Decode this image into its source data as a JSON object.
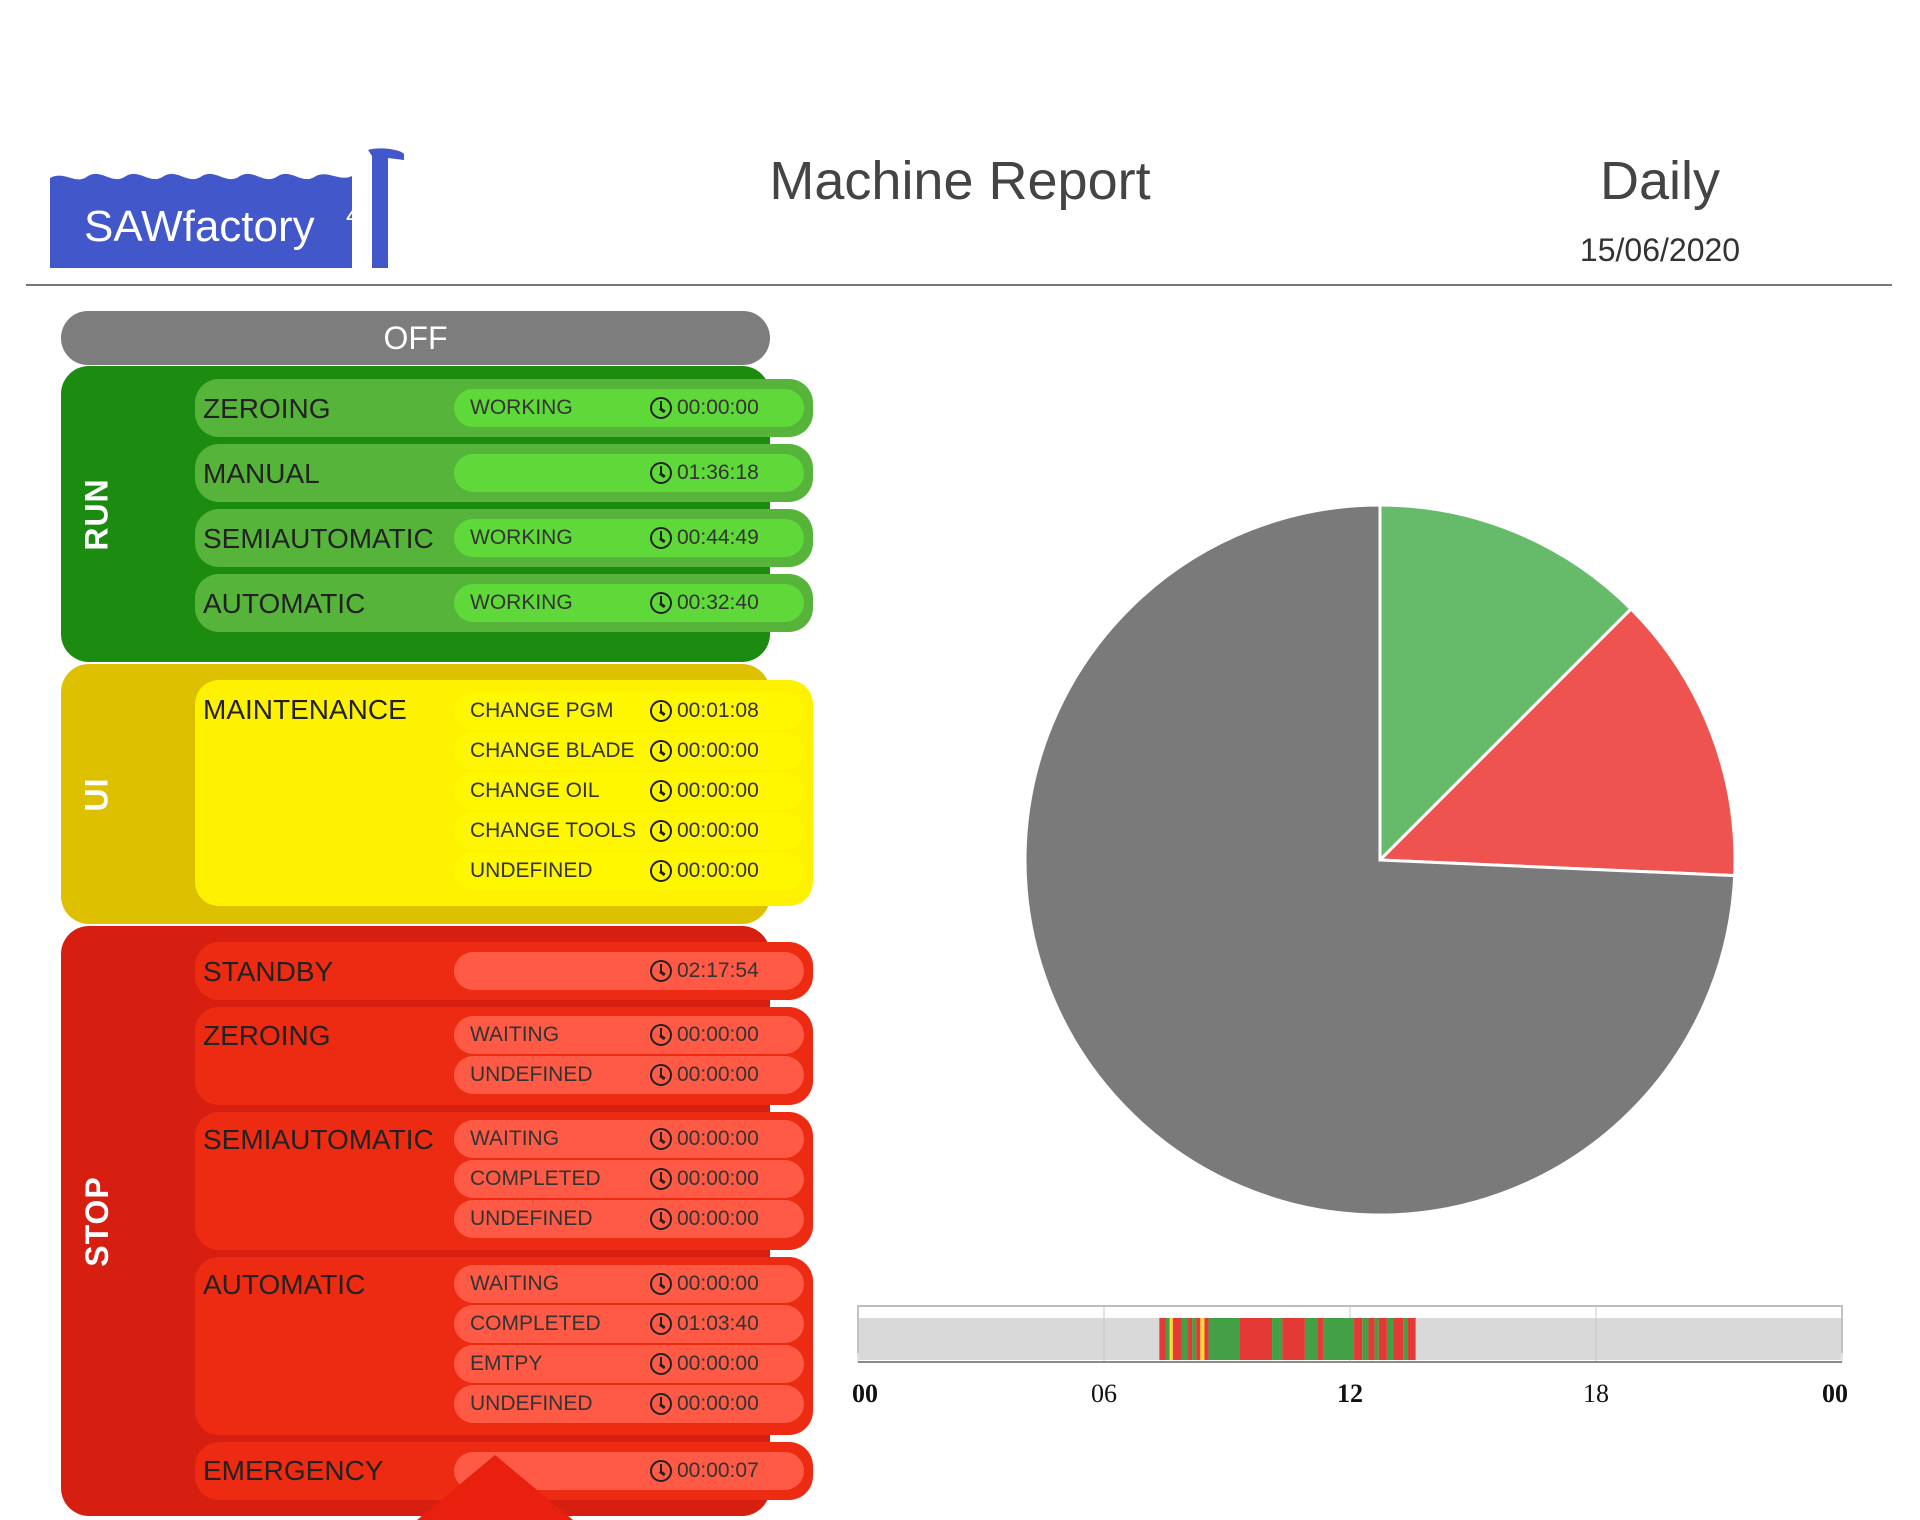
{
  "header": {
    "logo_text": "SAWfactory",
    "logo_superscript": "4",
    "title": "Machine Report",
    "period": "Daily",
    "date": "15/06/2020"
  },
  "colors": {
    "run": "#1c8c10",
    "ui": "#ddc100",
    "stop": "#d61f10",
    "off": "#7d7d7d",
    "logo": "#4257c9"
  },
  "status_panel": {
    "off_label": "OFF",
    "groups": [
      {
        "label": "RUN",
        "cards": [
          {
            "mode": "ZEROING",
            "rows": [
              {
                "status": "WORKING",
                "time": "00:00:00"
              }
            ]
          },
          {
            "mode": "MANUAL",
            "rows": [
              {
                "status": "",
                "time": "01:36:18"
              }
            ]
          },
          {
            "mode": "SEMIAUTOMATIC",
            "rows": [
              {
                "status": "WORKING",
                "time": "00:44:49"
              }
            ]
          },
          {
            "mode": "AUTOMATIC",
            "rows": [
              {
                "status": "WORKING",
                "time": "00:32:40"
              }
            ]
          }
        ]
      },
      {
        "label": "UI",
        "cards": [
          {
            "mode": "MAINTENANCE",
            "rows": [
              {
                "status": "CHANGE PGM",
                "time": "00:01:08"
              },
              {
                "status": "CHANGE BLADE",
                "time": "00:00:00"
              },
              {
                "status": "CHANGE OIL",
                "time": "00:00:00"
              },
              {
                "status": "CHANGE TOOLS",
                "time": "00:00:00"
              },
              {
                "status": "UNDEFINED",
                "time": "00:00:00"
              }
            ]
          }
        ]
      },
      {
        "label": "STOP",
        "cards": [
          {
            "mode": "STANDBY",
            "rows": [
              {
                "status": "",
                "time": "02:17:54"
              }
            ]
          },
          {
            "mode": "ZEROING",
            "rows": [
              {
                "status": "WAITING",
                "time": "00:00:00"
              },
              {
                "status": "UNDEFINED",
                "time": "00:00:00"
              }
            ]
          },
          {
            "mode": "SEMIAUTOMATIC",
            "rows": [
              {
                "status": "WAITING",
                "time": "00:00:00"
              },
              {
                "status": "COMPLETED",
                "time": "00:00:00"
              },
              {
                "status": "UNDEFINED",
                "time": "00:00:00"
              }
            ]
          },
          {
            "mode": "AUTOMATIC",
            "rows": [
              {
                "status": "WAITING",
                "time": "00:00:00"
              },
              {
                "status": "COMPLETED",
                "time": "01:03:40"
              },
              {
                "status": "EMTPY",
                "time": "00:00:00"
              },
              {
                "status": "UNDEFINED",
                "time": "00:00:00"
              }
            ]
          },
          {
            "mode": "EMERGENCY",
            "rows": [
              {
                "status": "",
                "time": "00:00:07"
              }
            ]
          }
        ]
      }
    ]
  },
  "chart_data": [
    {
      "type": "pie",
      "slices": [
        {
          "value": 12.5,
          "color": "#66bb6a"
        },
        {
          "value": 13.2,
          "color": "#ef5350"
        },
        {
          "value": 74.3,
          "color": "#7a7a7a"
        }
      ]
    },
    {
      "type": "timeline",
      "x_ticks": [
        "00",
        "06",
        "12",
        "18",
        "00"
      ],
      "x_range_hours": [
        0,
        24
      ],
      "segments": [
        {
          "start": 7.35,
          "end": 7.5,
          "color": "#e53935"
        },
        {
          "start": 7.5,
          "end": 7.6,
          "color": "#43a047"
        },
        {
          "start": 7.6,
          "end": 7.68,
          "color": "#fdd835"
        },
        {
          "start": 7.68,
          "end": 7.9,
          "color": "#e53935"
        },
        {
          "start": 7.9,
          "end": 8.05,
          "color": "#43a047"
        },
        {
          "start": 8.05,
          "end": 8.15,
          "color": "#e53935"
        },
        {
          "start": 8.15,
          "end": 8.25,
          "color": "#43a047"
        },
        {
          "start": 8.25,
          "end": 8.35,
          "color": "#e53935"
        },
        {
          "start": 8.35,
          "end": 8.45,
          "color": "#fdd835"
        },
        {
          "start": 8.45,
          "end": 8.55,
          "color": "#e53935"
        },
        {
          "start": 8.55,
          "end": 9.3,
          "color": "#43a047"
        },
        {
          "start": 9.3,
          "end": 10.1,
          "color": "#e53935"
        },
        {
          "start": 10.1,
          "end": 10.35,
          "color": "#43a047"
        },
        {
          "start": 10.35,
          "end": 10.9,
          "color": "#e53935"
        },
        {
          "start": 10.9,
          "end": 11.2,
          "color": "#43a047"
        },
        {
          "start": 11.2,
          "end": 11.35,
          "color": "#e53935"
        },
        {
          "start": 11.35,
          "end": 12.1,
          "color": "#43a047"
        },
        {
          "start": 12.1,
          "end": 12.3,
          "color": "#e53935"
        },
        {
          "start": 12.3,
          "end": 12.45,
          "color": "#43a047"
        },
        {
          "start": 12.45,
          "end": 12.6,
          "color": "#e53935"
        },
        {
          "start": 12.6,
          "end": 12.7,
          "color": "#43a047"
        },
        {
          "start": 12.7,
          "end": 12.9,
          "color": "#e53935"
        },
        {
          "start": 12.9,
          "end": 13.05,
          "color": "#43a047"
        },
        {
          "start": 13.05,
          "end": 13.3,
          "color": "#e53935"
        },
        {
          "start": 13.3,
          "end": 13.4,
          "color": "#43a047"
        },
        {
          "start": 13.4,
          "end": 13.6,
          "color": "#e53935"
        }
      ]
    }
  ]
}
